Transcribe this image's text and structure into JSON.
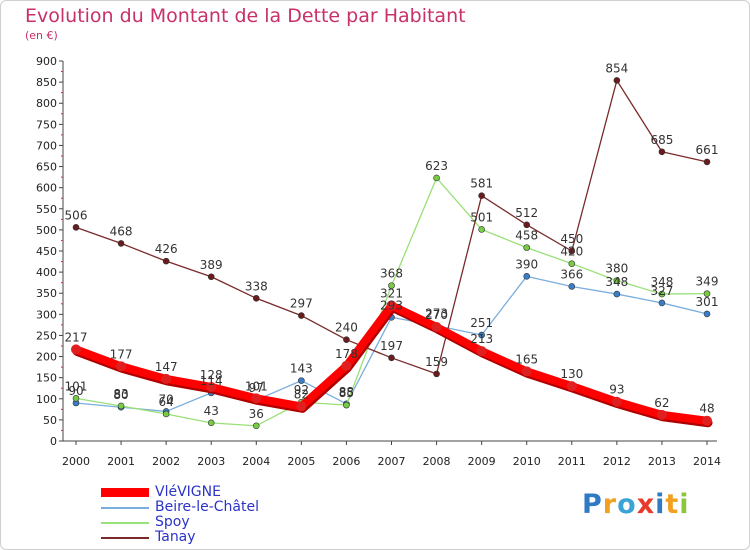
{
  "title": "Evolution du Montant de la Dette par Habitant",
  "subtitle": "(en €)",
  "logo": {
    "text": "Proxiti",
    "colors": [
      "#2e7bc4",
      "#f2a020",
      "#3ba3d6",
      "#e83a2a",
      "#2e7bc4",
      "#f2a020",
      "#8cc63f"
    ]
  },
  "chart_data": {
    "type": "line",
    "title": "Evolution du Montant de la Dette par Habitant",
    "subtitle": "(en €)",
    "x": [
      "2000",
      "2001",
      "2002",
      "2003",
      "2004",
      "2005",
      "2006",
      "2007",
      "2008",
      "2009",
      "2010",
      "2011",
      "2012",
      "2013",
      "2014"
    ],
    "ylim": [
      0,
      900
    ],
    "yticks": [
      0,
      50,
      100,
      150,
      200,
      250,
      300,
      350,
      400,
      450,
      500,
      550,
      600,
      650,
      700,
      750,
      800,
      850,
      900
    ],
    "grid": false,
    "legend_position": "bottom-left",
    "series": [
      {
        "name": "VléVIGNE",
        "color": "#ff0000",
        "marker": "#e02020",
        "thick": true,
        "values": [
          217,
          177,
          147,
          128,
          101,
          82,
          178,
          321,
          270,
          213,
          165,
          130,
          93,
          62,
          48
        ],
        "labels": [
          "217",
          "177",
          "147",
          "128",
          "101",
          "82",
          "178",
          "321",
          "270",
          "213",
          "165",
          "130",
          "93",
          "62",
          "48"
        ]
      },
      {
        "name": "Beire-le-Châtel",
        "color": "#7aaedd",
        "marker": "#3a7dc9",
        "thick": false,
        "values": [
          90,
          80,
          70,
          114,
          97,
          143,
          88,
          293,
          273,
          251,
          390,
          366,
          348,
          327,
          301
        ],
        "labels": [
          "90",
          "80",
          "70",
          "114",
          "97",
          "143",
          "88",
          "293",
          "273",
          "251",
          "390",
          "366",
          "348",
          "327",
          "301"
        ]
      },
      {
        "name": "Spoy",
        "color": "#99e077",
        "marker": "#77cc44",
        "thick": false,
        "values": [
          101,
          83,
          64,
          43,
          36,
          92,
          85,
          368,
          623,
          501,
          458,
          420,
          380,
          348,
          349
        ],
        "labels": [
          "101",
          "83",
          "64",
          "43",
          "36",
          "92",
          "85",
          "368",
          "623",
          "501",
          "458",
          "420",
          "380",
          "348",
          "349"
        ]
      },
      {
        "name": "Tanay",
        "color": "#7a2a2a",
        "marker": "#6a1c1c",
        "thick": false,
        "values": [
          506,
          468,
          426,
          389,
          338,
          297,
          240,
          197,
          159,
          581,
          512,
          450,
          854,
          685,
          661
        ],
        "labels": [
          "506",
          "468",
          "426",
          "389",
          "338",
          "297",
          "240",
          "197",
          "159",
          "581",
          "512",
          "450",
          "854",
          "685",
          "661"
        ],
        "gaps_after": []
      }
    ]
  }
}
